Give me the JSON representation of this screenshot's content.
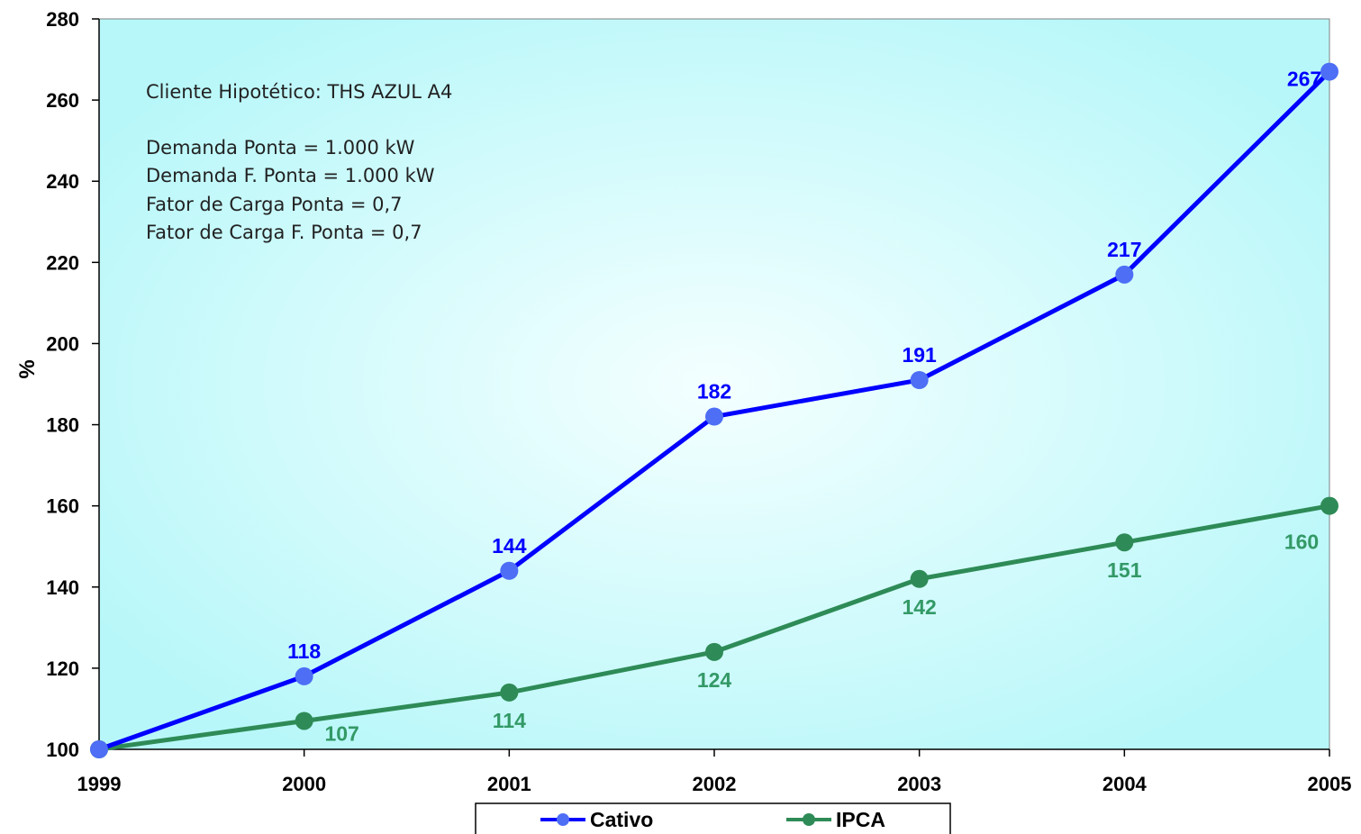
{
  "chart_data": {
    "type": "line",
    "x": [
      "1999",
      "2000",
      "2001",
      "2002",
      "2003",
      "2004",
      "2005"
    ],
    "ylabel": "%",
    "ylim": [
      100,
      280
    ],
    "yticks": [
      100,
      120,
      140,
      160,
      180,
      200,
      220,
      240,
      260,
      280
    ],
    "grid": false,
    "legend_position": "bottom",
    "series": [
      {
        "name": "Cativo",
        "color": "#0000ff",
        "marker_color": "#4d6ef5",
        "values": [
          100,
          118,
          144,
          182,
          191,
          217,
          267
        ],
        "labels": [
          "",
          "118",
          "144",
          "182",
          "191",
          "217",
          "267"
        ]
      },
      {
        "name": "IPCA",
        "color": "#2e8b57",
        "marker_color": "#2e8b57",
        "label_color": "#339966",
        "values": [
          100,
          107,
          114,
          124,
          142,
          151,
          160
        ],
        "labels": [
          "",
          "107",
          "114",
          "124",
          "142",
          "151",
          "160"
        ]
      }
    ],
    "annotation": {
      "title": "Cliente Hipotético: THS AZUL A4",
      "lines": [
        "Demanda Ponta = 1.000 kW",
        "Demanda F. Ponta = 1.000 kW",
        "Fator de Carga Ponta = 0,7",
        "Fator de Carga F. Ponta = 0,7"
      ]
    },
    "colors": {
      "plot_bg_center": "#f4ffff",
      "plot_bg_edge": "#b8f7f9"
    }
  }
}
